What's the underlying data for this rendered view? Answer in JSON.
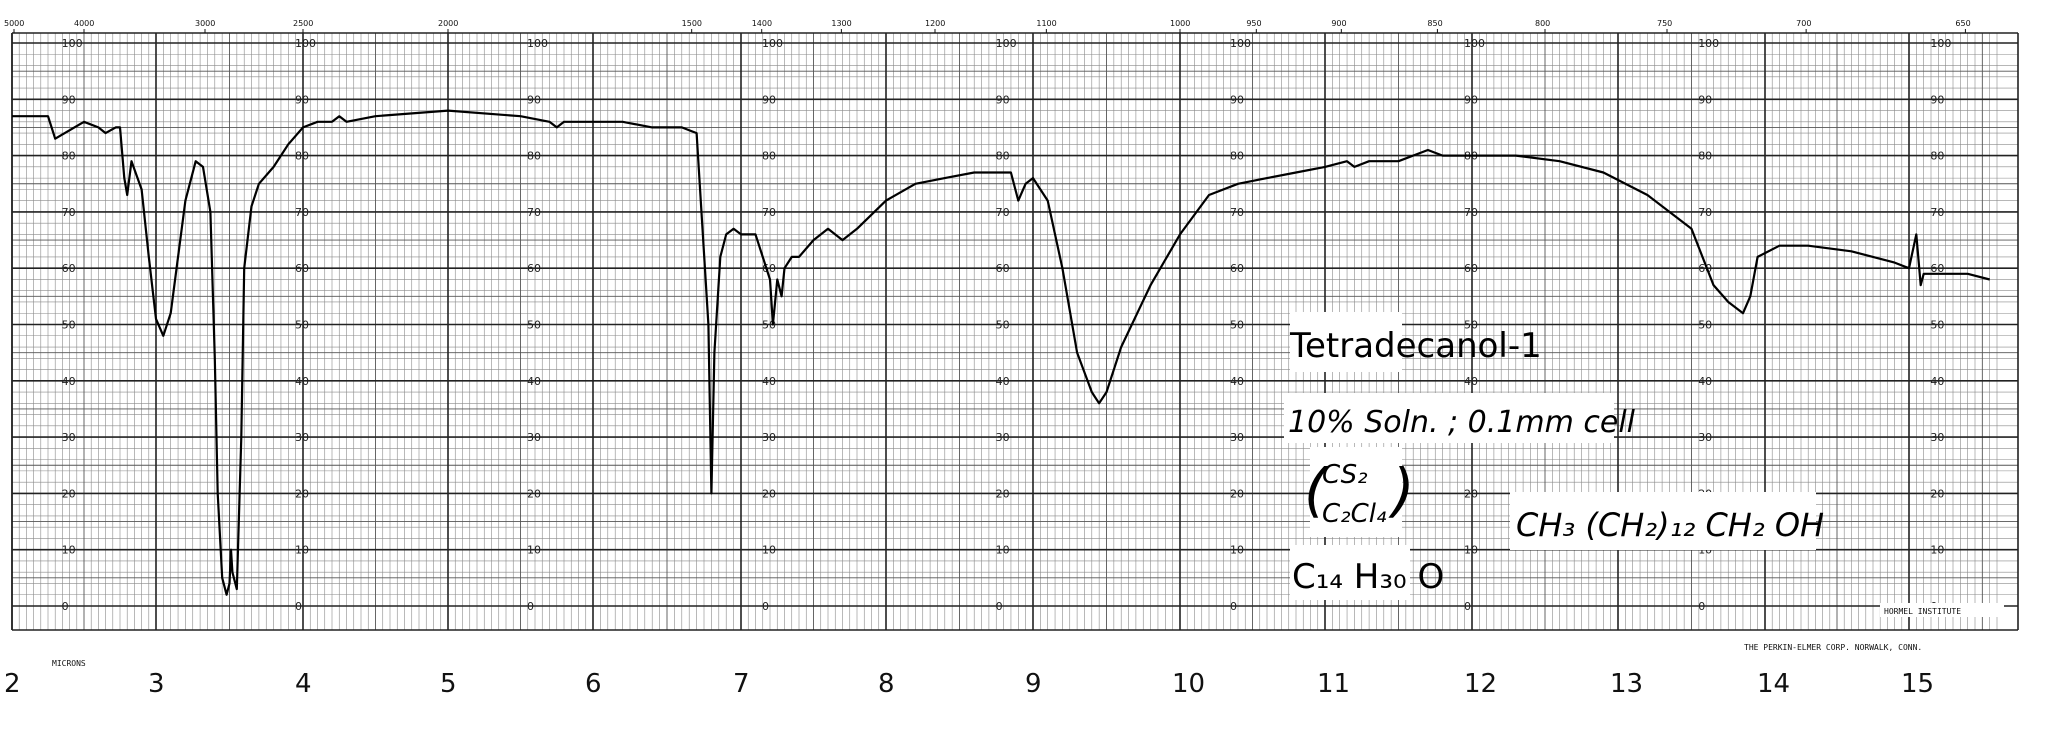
{
  "chart_data": {
    "type": "line",
    "title": "Tetradecanol-1",
    "notes": {
      "solution": "10% Soln. ; 0.1mm cell",
      "solvent_top": "CS₂",
      "solvent_bottom": "C₂Cl₄",
      "formula": "C₁₄ H₃₀ O",
      "structure": "CH₃ (CH₂)₁₂ CH₂ OH"
    },
    "xlabel": "MICRONS",
    "x_unit": "microns",
    "xlim": [
      2,
      15.6
    ],
    "ylim": [
      0,
      100
    ],
    "micron_ticks": [
      "2",
      "3",
      "4",
      "5",
      "6",
      "7",
      "8",
      "9",
      "10",
      "11",
      "12",
      "13",
      "14",
      "15"
    ],
    "wavenumber_ticks": [
      "5000",
      "4000",
      "3000",
      "2500",
      "2000",
      "1500",
      "1400",
      "1300",
      "1200",
      "1100",
      "1000",
      "950",
      "900",
      "850",
      "800",
      "750",
      "700",
      "650"
    ],
    "percent_ticks": [
      "0",
      "10",
      "20",
      "30",
      "40",
      "50",
      "60",
      "70",
      "80",
      "90",
      "100"
    ],
    "footer": {
      "institute": "HORMEL INSTITUTE",
      "maker": "THE PERKIN-ELMER CORP. NORWALK, CONN."
    },
    "series": [
      {
        "x": [
          2.0,
          2.25,
          2.3,
          2.5,
          2.6,
          2.65,
          2.72,
          2.75,
          2.78,
          2.8,
          2.83,
          2.9,
          2.95,
          3.0,
          3.05,
          3.1,
          3.2,
          3.27,
          3.32,
          3.37,
          3.4,
          3.42,
          3.45,
          3.48,
          3.5,
          3.51,
          3.52,
          3.55,
          3.56,
          3.58,
          3.6,
          3.65,
          3.7,
          3.8,
          3.9,
          4.0,
          4.1,
          4.2,
          4.25,
          4.3,
          4.5,
          5.0,
          5.5,
          5.7,
          5.75,
          5.8,
          6.0,
          6.2,
          6.4,
          6.5,
          6.6,
          6.7,
          6.78,
          6.8,
          6.82,
          6.86,
          6.9,
          6.95,
          7.0,
          7.1,
          7.2,
          7.22,
          7.25,
          7.28,
          7.3,
          7.35,
          7.4,
          7.5,
          7.6,
          7.7,
          7.8,
          8.0,
          8.2,
          8.4,
          8.6,
          8.85,
          8.9,
          8.95,
          9.0,
          9.1,
          9.2,
          9.3,
          9.4,
          9.45,
          9.5,
          9.6,
          9.8,
          10.0,
          10.2,
          10.4,
          10.6,
          10.8,
          11.0,
          11.15,
          11.2,
          11.3,
          11.5,
          11.7,
          11.8,
          11.9,
          12.0,
          12.3,
          12.6,
          12.9,
          13.2,
          13.5,
          13.65,
          13.75,
          13.85,
          13.9,
          13.95,
          14.1,
          14.3,
          14.6,
          14.9,
          15.0,
          15.05,
          15.08,
          15.1,
          15.2,
          15.4,
          15.55
        ],
        "y": [
          87,
          87,
          83,
          86,
          85,
          84,
          85,
          85,
          76,
          73,
          79,
          74,
          62,
          51,
          48,
          52,
          72,
          79,
          78,
          70,
          44,
          20,
          5,
          2,
          4,
          10,
          6,
          3,
          12,
          30,
          60,
          71,
          75,
          78,
          82,
          85,
          86,
          86,
          87,
          86,
          87,
          88,
          87,
          86,
          85,
          86,
          86,
          86,
          85,
          85,
          85,
          84,
          50,
          20,
          45,
          62,
          66,
          67,
          66,
          66,
          58,
          50,
          58,
          55,
          60,
          62,
          62,
          65,
          67,
          65,
          67,
          72,
          75,
          76,
          77,
          77,
          72,
          75,
          76,
          72,
          60,
          45,
          38,
          36,
          38,
          46,
          57,
          66,
          73,
          75,
          76,
          77,
          78,
          79,
          78,
          79,
          79,
          81,
          80,
          80,
          80,
          80,
          79,
          77,
          73,
          67,
          57,
          54,
          52,
          55,
          62,
          64,
          64,
          63,
          61,
          60,
          66,
          57,
          59,
          59,
          59,
          58
        ]
      }
    ]
  }
}
